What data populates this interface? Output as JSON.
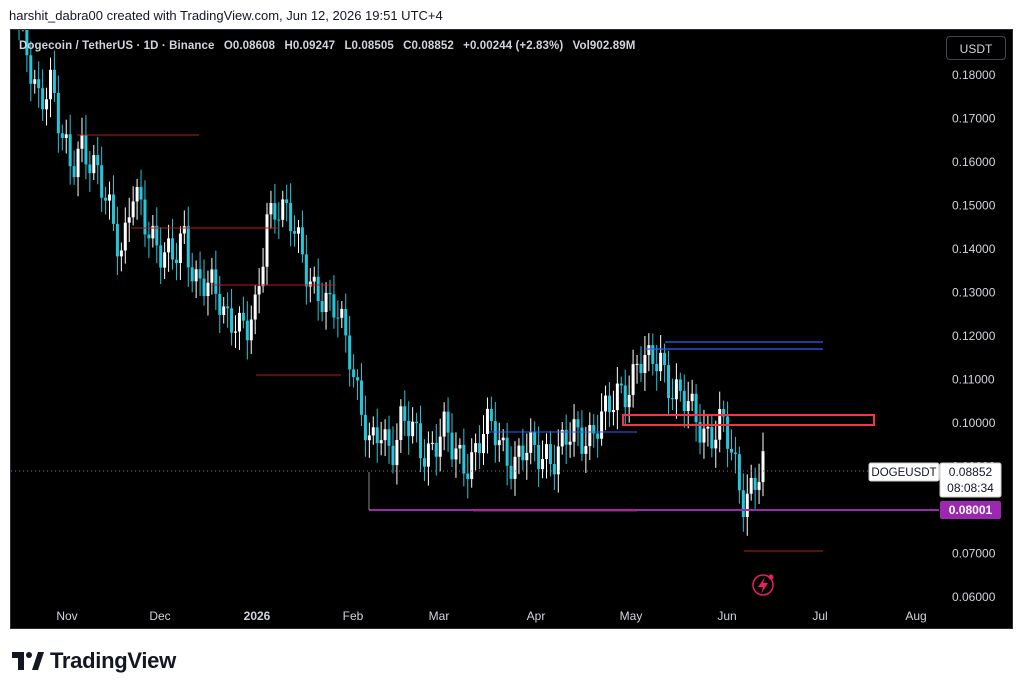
{
  "header": {
    "attribution": "harshit_dabra00 created with TradingView.com, Jun 12, 2026 19:51 UTC+4"
  },
  "legend": {
    "symbol": "Dogecoin / TetherUS · 1D · Binance",
    "open": "O0.08608",
    "high": "H0.09247",
    "low": "L0.08505",
    "close": "C0.08852",
    "change": "+0.00244 (+2.83%)",
    "volume": "Vol902.89M"
  },
  "currency_button": "USDT",
  "price_axis": {
    "labels": [
      "0.18000",
      "0.17000",
      "0.16000",
      "0.15000",
      "0.14000",
      "0.13000",
      "0.12000",
      "0.11000",
      "0.10000",
      "0.09000",
      "0.07000",
      "0.06000"
    ],
    "values": [
      0.18,
      0.17,
      0.16,
      0.15,
      0.14,
      0.13,
      0.12,
      0.11,
      0.1,
      0.09,
      0.07,
      0.06
    ]
  },
  "time_axis": {
    "labels": [
      "Nov",
      "Dec",
      "2026",
      "Feb",
      "Mar",
      "Apr",
      "May",
      "Jun",
      "Jul",
      "Aug"
    ]
  },
  "price_tag": {
    "symbol": "DOGEUSDT",
    "price": "0.08852",
    "countdown": "08:08:34"
  },
  "support_tag": "0.08001",
  "footer": {
    "brand": "TradingView"
  },
  "colors": {
    "background": "#000000",
    "up_candle": "#ffffff",
    "down_candle": "#26c6da",
    "support_line": "#9c27b0",
    "resistance_zone": "#f23645",
    "blue_level": "#2962ff",
    "red_level": "#b71c1c"
  },
  "chart_data": {
    "type": "candlestick",
    "title": "Dogecoin / TetherUS · 1D · Binance",
    "ylabel": "USDT",
    "ylim": [
      0.06,
      0.185
    ],
    "x_months": [
      "Nov",
      "Dec",
      "2026",
      "Feb",
      "Mar",
      "Apr",
      "May",
      "Jun",
      "Jul",
      "Aug"
    ],
    "close_path": [
      [
        "Oct",
        0.19
      ],
      [
        "Oct",
        0.183
      ],
      [
        "Nov",
        0.176
      ],
      [
        "Nov",
        0.178
      ],
      [
        "Nov",
        0.165
      ],
      [
        "Nov",
        0.16
      ],
      [
        "Nov",
        0.166
      ],
      [
        "Nov",
        0.158
      ],
      [
        "Nov",
        0.153
      ],
      [
        "Nov",
        0.149
      ],
      [
        "Nov",
        0.14
      ],
      [
        "Dec",
        0.152
      ],
      [
        "Dec",
        0.146
      ],
      [
        "Dec",
        0.144
      ],
      [
        "Dec",
        0.14
      ],
      [
        "Dec",
        0.136
      ],
      [
        "Dec",
        0.142
      ],
      [
        "Dec",
        0.135
      ],
      [
        "Dec",
        0.133
      ],
      [
        "Dec",
        0.128
      ],
      [
        "Dec",
        0.124
      ],
      [
        "2026",
        0.126
      ],
      [
        "2026",
        0.121
      ],
      [
        "2026",
        0.124
      ],
      [
        "2026",
        0.148
      ],
      [
        "2026",
        0.152
      ],
      [
        "2026",
        0.147
      ],
      [
        "2026",
        0.14
      ],
      [
        "2026",
        0.135
      ],
      [
        "2026",
        0.131
      ],
      [
        "2026",
        0.125
      ],
      [
        "Feb",
        0.124
      ],
      [
        "Feb",
        0.118
      ],
      [
        "Feb",
        0.105
      ],
      [
        "Feb",
        0.092
      ],
      [
        "Feb",
        0.098
      ],
      [
        "Feb",
        0.095
      ],
      [
        "Feb",
        0.101
      ],
      [
        "Feb",
        0.097
      ],
      [
        "Feb",
        0.093
      ],
      [
        "Mar",
        0.096
      ],
      [
        "Mar",
        0.099
      ],
      [
        "Mar",
        0.092
      ],
      [
        "Mar",
        0.091
      ],
      [
        "Mar",
        0.094
      ],
      [
        "Mar",
        0.098
      ],
      [
        "Mar",
        0.097
      ],
      [
        "Mar",
        0.094
      ],
      [
        "Apr",
        0.092
      ],
      [
        "Apr",
        0.093
      ],
      [
        "Apr",
        0.092
      ],
      [
        "Apr",
        0.094
      ],
      [
        "Apr",
        0.093
      ],
      [
        "Apr",
        0.095
      ],
      [
        "Apr",
        0.097
      ],
      [
        "Apr",
        0.098
      ],
      [
        "Apr",
        0.1
      ],
      [
        "Apr",
        0.101
      ],
      [
        "May",
        0.107
      ],
      [
        "May",
        0.11
      ],
      [
        "May",
        0.114
      ],
      [
        "May",
        0.112
      ],
      [
        "May",
        0.116
      ],
      [
        "May",
        0.11
      ],
      [
        "May",
        0.105
      ],
      [
        "May",
        0.102
      ],
      [
        "May",
        0.1
      ],
      [
        "May",
        0.098
      ],
      [
        "Jun",
        0.099
      ],
      [
        "Jun",
        0.092
      ],
      [
        "Jun",
        0.084
      ],
      [
        "Jun",
        0.086
      ],
      [
        "Jun",
        0.0885
      ]
    ],
    "levels": [
      {
        "label": "0.08001",
        "value": 0.08001,
        "kind": "support"
      },
      {
        "value_top": 0.102,
        "value_bottom": 0.0995,
        "kind": "resistance-zone"
      },
      {
        "value": 0.1187,
        "kind": "blue-level"
      },
      {
        "value": 0.1172,
        "kind": "blue-level"
      },
      {
        "value": 0.0885,
        "kind": "current-price"
      }
    ]
  }
}
